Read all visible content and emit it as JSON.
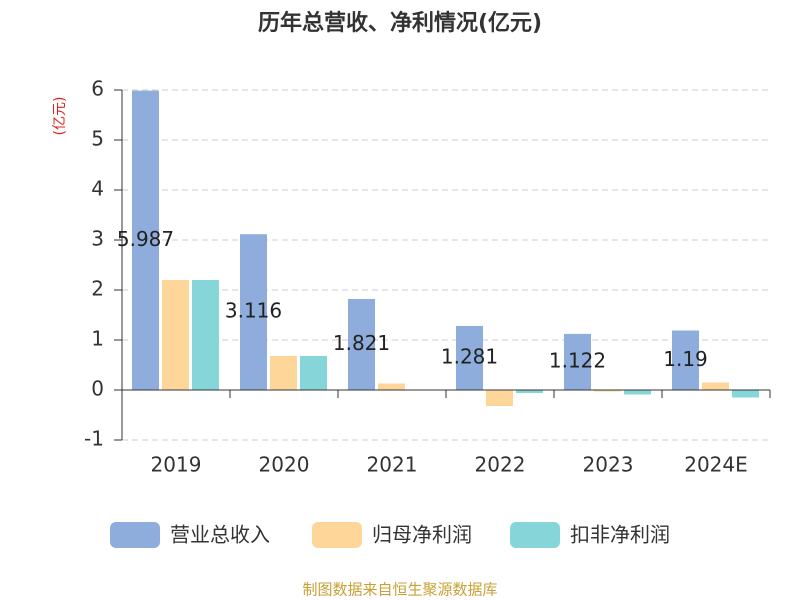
{
  "chart_data": {
    "type": "bar",
    "title": "历年总营收、净利情况(亿元)",
    "y_label": "(亿元)",
    "categories": [
      "2019",
      "2020",
      "2021",
      "2022",
      "2023",
      "2024E"
    ],
    "series": [
      {
        "name": "营业总收入",
        "color": "#8eaddc",
        "values": [
          5.987,
          3.116,
          1.821,
          1.281,
          1.122,
          1.19
        ],
        "value_labels": [
          "5.987",
          "3.116",
          "1.821",
          "1.281",
          "1.122",
          "1.19"
        ]
      },
      {
        "name": "归母净利润",
        "color": "#ffd699",
        "values": [
          2.2,
          0.68,
          0.13,
          -0.32,
          -0.03,
          0.15
        ]
      },
      {
        "name": "扣非净利润",
        "color": "#86d5d8",
        "values": [
          2.2,
          0.68,
          0,
          -0.06,
          -0.09,
          -0.15
        ]
      }
    ],
    "ylim": [
      -1,
      6
    ],
    "yticks": [
      -1,
      0,
      1,
      2,
      3,
      4,
      5,
      6
    ],
    "grid": true,
    "source": "制图数据来自恒生聚源数据库"
  }
}
